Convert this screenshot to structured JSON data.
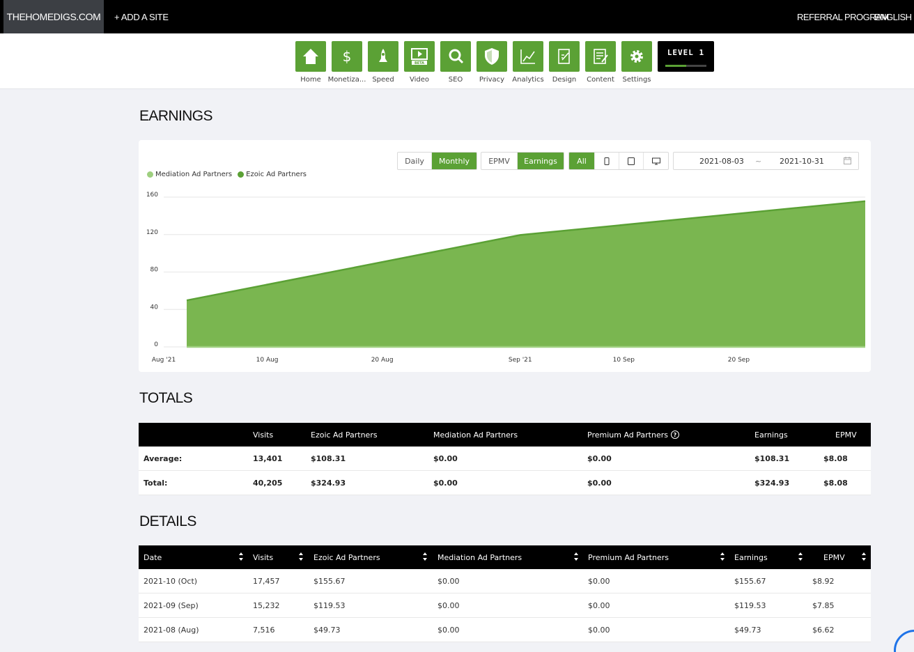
{
  "topbar": {
    "site_name": "THEHOMEDIGS.COM",
    "add_site": "+ ADD A SITE",
    "referral": "REFERRAL PROGRAM",
    "language": "ENGLISH"
  },
  "nav": {
    "items": [
      {
        "label": "Home",
        "icon": "home-icon"
      },
      {
        "label": "Monetiza...",
        "icon": "dollar-icon"
      },
      {
        "label": "Speed",
        "icon": "rocket-icon"
      },
      {
        "label": "Video",
        "icon": "video-beta-icon",
        "badge": "BETA"
      },
      {
        "label": "SEO",
        "icon": "magnifier-icon"
      },
      {
        "label": "Privacy",
        "icon": "shield-icon"
      },
      {
        "label": "Analytics",
        "icon": "line-chart-icon"
      },
      {
        "label": "Design",
        "icon": "design-icon"
      },
      {
        "label": "Content",
        "icon": "content-icon"
      },
      {
        "label": "Settings",
        "icon": "gear-icon"
      }
    ],
    "level": {
      "label": "LEVEL 1",
      "progress": 0.5
    }
  },
  "earnings": {
    "title": "EARNINGS",
    "period_buttons": [
      "Daily",
      "Monthly"
    ],
    "period_active": "Monthly",
    "metric_buttons": [
      "EPMV",
      "Earnings"
    ],
    "metric_active": "Earnings",
    "device_buttons": {
      "all": "All",
      "icons": [
        "mobile-icon",
        "tablet-icon",
        "desktop-icon"
      ]
    },
    "date_start": "2021-08-03",
    "date_sep": "~",
    "date_end": "2021-10-31",
    "colors": {
      "accent": "#5ba135",
      "mediation": "#9ecf7f",
      "ezoic": "#5ba135",
      "fill": "#7ab650"
    }
  },
  "chart_data": {
    "type": "area",
    "title": "",
    "xlabel": "",
    "ylabel": "",
    "x_ticks": [
      "Aug '21",
      "10 Aug",
      "20 Aug",
      "Sep '21",
      "10 Sep",
      "20 Sep"
    ],
    "y_ticks": [
      0,
      40,
      80,
      120,
      160
    ],
    "ylim": [
      0,
      160
    ],
    "x": [
      "2021-08-03",
      "2021-09-01",
      "2021-10-01"
    ],
    "series": [
      {
        "name": "Mediation Ad Partners",
        "values": [
          0,
          0,
          0
        ]
      },
      {
        "name": "Ezoic Ad Partners",
        "values": [
          49.73,
          119.53,
          155.67
        ]
      }
    ],
    "legend": "top-left",
    "grid": true
  },
  "totals": {
    "title": "TOTALS",
    "headers": [
      "",
      "Visits",
      "Ezoic Ad Partners",
      "Mediation Ad Partners",
      "Premium Ad Partners",
      "Earnings",
      "EPMV"
    ],
    "help": "?",
    "rows": [
      {
        "label": "Average:",
        "visits": "13,401",
        "ezoic": "$108.31",
        "mediation": "$0.00",
        "premium": "$0.00",
        "earnings": "$108.31",
        "epmv": "$8.08"
      },
      {
        "label": "Total:",
        "visits": "40,205",
        "ezoic": "$324.93",
        "mediation": "$0.00",
        "premium": "$0.00",
        "earnings": "$324.93",
        "epmv": "$8.08"
      }
    ]
  },
  "details": {
    "title": "DETAILS",
    "headers": [
      "Date",
      "Visits",
      "Ezoic Ad Partners",
      "Mediation Ad Partners",
      "Premium Ad Partners",
      "Earnings",
      "EPMV"
    ],
    "rows": [
      {
        "date": "2021-10 (Oct)",
        "visits": "17,457",
        "ezoic": "$155.67",
        "mediation": "$0.00",
        "premium": "$0.00",
        "earnings": "$155.67",
        "epmv": "$8.92"
      },
      {
        "date": "2021-09 (Sep)",
        "visits": "15,232",
        "ezoic": "$119.53",
        "mediation": "$0.00",
        "premium": "$0.00",
        "earnings": "$119.53",
        "epmv": "$7.85"
      },
      {
        "date": "2021-08 (Aug)",
        "visits": "7,516",
        "ezoic": "$49.73",
        "mediation": "$0.00",
        "premium": "$0.00",
        "earnings": "$49.73",
        "epmv": "$6.62"
      }
    ]
  }
}
